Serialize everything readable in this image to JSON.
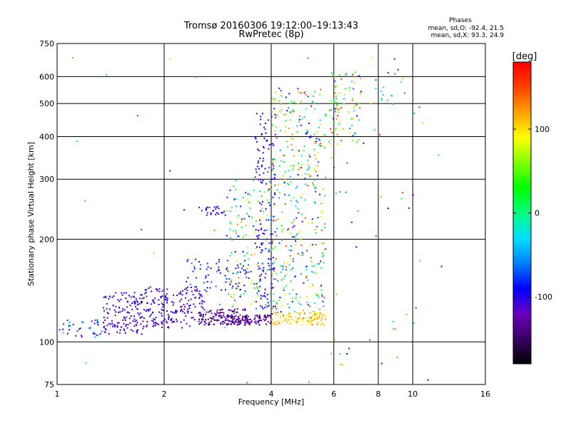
{
  "chart_data": {
    "type": "scatter",
    "title": "Tromsø 20160306 19:12:00–19:13:43",
    "subtitle": "RwPretec (8p)",
    "xlabel": "Frequency [MHz]",
    "ylabel": "Stationary phase Virtual Height [km]",
    "x_scale": "log",
    "y_scale": "log",
    "xlim": [
      1,
      16
    ],
    "ylim": [
      75,
      750
    ],
    "x_ticks": [
      "1",
      "2",
      "4",
      "6",
      "8",
      "10",
      "16"
    ],
    "y_ticks": [
      "75",
      "100",
      "200",
      "300",
      "400",
      "500",
      "600",
      "750"
    ],
    "grid": true,
    "stats": {
      "heading": "Phases",
      "o_line": "mean, sd,O: -92.4, 21.5",
      "x_line": "mean, sd,X:  93.3, 24.9"
    },
    "colorbar": {
      "label": "[deg]",
      "range": [
        -180,
        180
      ],
      "ticks": [
        "100",
        "0",
        "-100"
      ],
      "colors": [
        "#000000",
        "#3a0060",
        "#6a00c0",
        "#0000ff",
        "#0080ff",
        "#00dfff",
        "#00ff80",
        "#00ff00",
        "#80ff00",
        "#ffff00",
        "#ffa000",
        "#ff4000",
        "#ff0000"
      ]
    },
    "clusters": [
      {
        "x": [
          1.0,
          1.35
        ],
        "y": [
          103,
          116
        ],
        "n": 40,
        "phase": [
          -120,
          -40
        ]
      },
      {
        "x": [
          1.35,
          1.75
        ],
        "y": [
          105,
          140
        ],
        "n": 140,
        "phase": [
          -130,
          -90
        ]
      },
      {
        "x": [
          1.75,
          2.6
        ],
        "y": [
          110,
          145
        ],
        "n": 190,
        "phase": [
          -130,
          -90
        ]
      },
      {
        "x": [
          2.5,
          3.4
        ],
        "y": [
          112,
          125
        ],
        "n": 120,
        "phase": [
          -160,
          -110
        ]
      },
      {
        "x": [
          2.3,
          3.5
        ],
        "y": [
          140,
          175
        ],
        "n": 80,
        "phase": [
          -120,
          -60
        ]
      },
      {
        "x": [
          3.0,
          4.0
        ],
        "y": [
          112,
          120
        ],
        "n": 110,
        "phase": [
          -160,
          -110
        ]
      },
      {
        "x": [
          3.0,
          4.0
        ],
        "y": [
          125,
          300
        ],
        "n": 140,
        "phase": [
          -120,
          140
        ]
      },
      {
        "x": [
          3.6,
          4.1
        ],
        "y": [
          120,
          470
        ],
        "n": 150,
        "phase": [
          -120,
          -80
        ]
      },
      {
        "x": [
          4.0,
          5.7
        ],
        "y": [
          112,
          122
        ],
        "n": 110,
        "phase": [
          80,
          140
        ]
      },
      {
        "x": [
          4.0,
          5.7
        ],
        "y": [
          122,
          300
        ],
        "n": 230,
        "phase": [
          -120,
          160
        ]
      },
      {
        "x": [
          4.0,
          5.7
        ],
        "y": [
          300,
          560
        ],
        "n": 170,
        "phase": [
          -120,
          160
        ]
      },
      {
        "x": [
          5.8,
          7.2
        ],
        "y": [
          380,
          620
        ],
        "n": 90,
        "phase": [
          -100,
          170
        ]
      },
      {
        "x": [
          2.5,
          3.0
        ],
        "y": [
          235,
          250
        ],
        "n": 25,
        "phase": [
          -120,
          -90
        ]
      },
      {
        "x": [
          7.6,
          9.6
        ],
        "y": [
          470,
          630
        ],
        "n": 14,
        "phase": [
          -120,
          40
        ]
      },
      {
        "x": [
          5.8,
          10.5
        ],
        "y": [
          85,
          700
        ],
        "n": 40,
        "phase": [
          -120,
          160
        ]
      },
      {
        "x": [
          1.0,
          13.0
        ],
        "y": [
          75,
          700
        ],
        "n": 40,
        "phase": [
          -120,
          160
        ]
      }
    ]
  }
}
